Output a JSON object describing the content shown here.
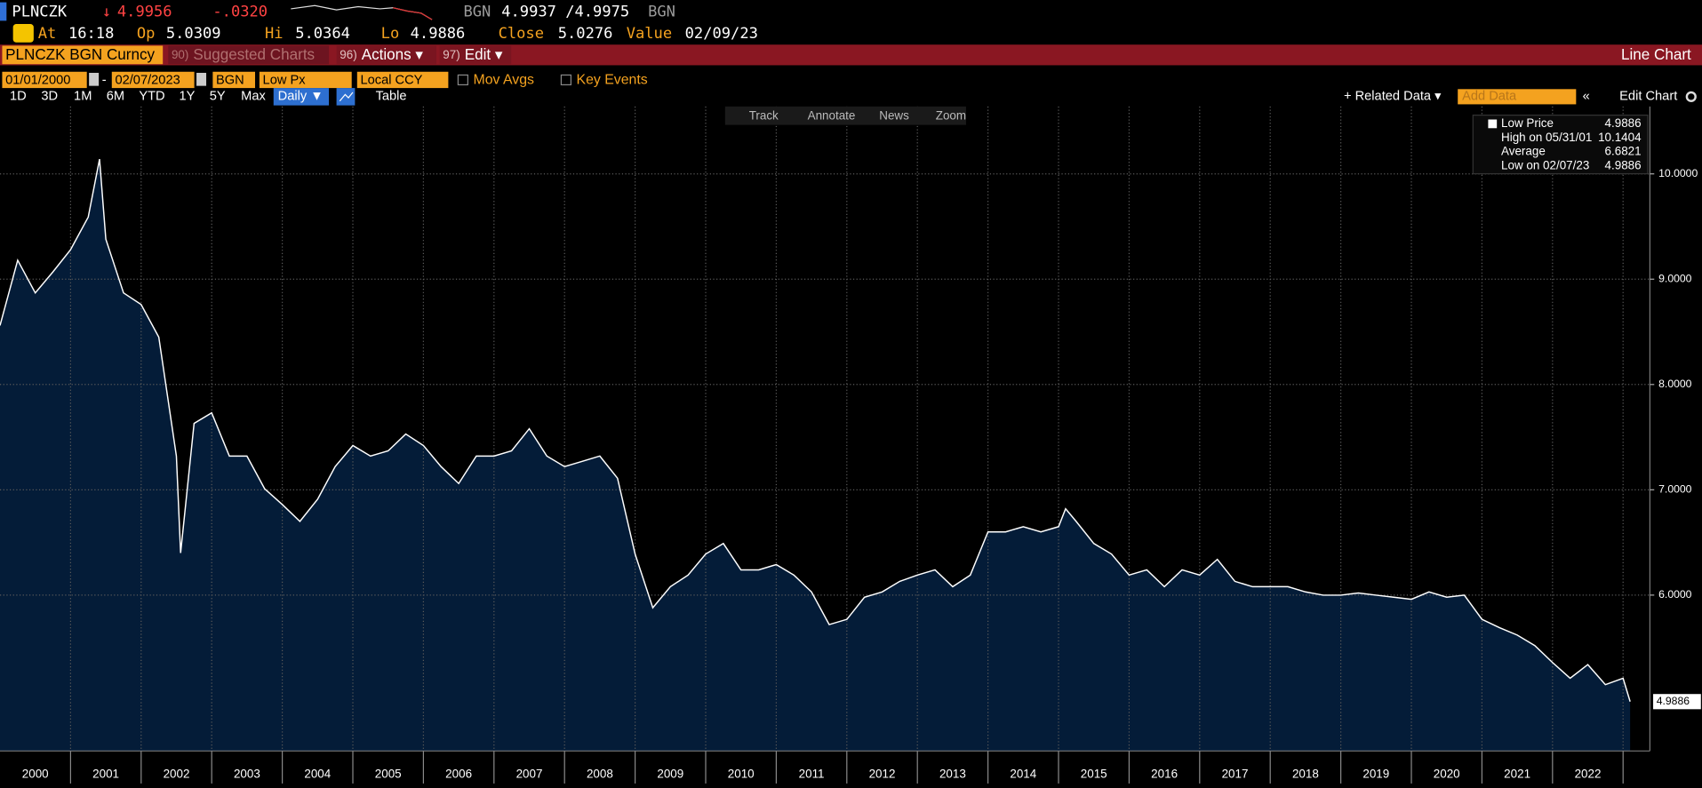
{
  "header": {
    "ticker": "PLNCZK",
    "arrow": "↓",
    "price": "4.9956",
    "change": "-.0320",
    "bid_ccy": "BGN",
    "bid_ask": "4.9937 /4.9975",
    "ask_ccy": "BGN",
    "stats": [
      [
        "At",
        "16:18"
      ],
      [
        "Op",
        "5.0309"
      ],
      [
        "Hi",
        "5.0364"
      ],
      [
        "Lo",
        "4.9886"
      ],
      [
        "Close",
        "5.0276"
      ],
      [
        "Value",
        "02/09/23"
      ]
    ]
  },
  "menu": {
    "security": "PLNCZK BGN Curncy",
    "items": [
      [
        "90)",
        "Suggested Charts"
      ],
      [
        "96)",
        "Actions ▾"
      ],
      [
        "97)",
        "Edit ▾"
      ]
    ],
    "view": "Line Chart"
  },
  "controls": {
    "start": "01/01/2000",
    "end": "02/07/2023",
    "currency": "BGN",
    "field": "Low Px",
    "ccy_mode": "Local CCY",
    "mov_avgs": "Mov Avgs",
    "key_events": "Key Events"
  },
  "toolbar": {
    "periods": [
      "1D",
      "3D",
      "1M",
      "6M",
      "YTD",
      "1Y",
      "5Y",
      "Max"
    ],
    "frequency": "Daily ▼",
    "table": "Table",
    "related": "+ Related Data ▾",
    "add_data": "Add Data",
    "edit_chart": "Edit Chart"
  },
  "chart_tools": [
    "Track",
    "Annotate",
    "News",
    "Zoom"
  ],
  "legend": [
    [
      "Low Price",
      "4.9886"
    ],
    [
      "High on 05/31/01",
      "10.1404"
    ],
    [
      "Average",
      "6.6821"
    ],
    [
      "Low on 02/07/23",
      "4.9886"
    ]
  ],
  "chart_data": {
    "type": "area",
    "color": "#ffffff",
    "fill": "#041c38",
    "grid": true,
    "x": [
      2000,
      2000.25,
      2000.5,
      2000.75,
      2001,
      2001.25,
      2001.41,
      2001.5,
      2001.75,
      2002,
      2002.25,
      2002.5,
      2002.56,
      2002.75,
      2003,
      2003.25,
      2003.5,
      2003.75,
      2004,
      2004.25,
      2004.5,
      2004.75,
      2005,
      2005.25,
      2005.5,
      2005.75,
      2006,
      2006.25,
      2006.5,
      2006.75,
      2007,
      2007.25,
      2007.5,
      2007.75,
      2008,
      2008.25,
      2008.5,
      2008.75,
      2009,
      2009.25,
      2009.5,
      2009.75,
      2010,
      2010.25,
      2010.5,
      2010.75,
      2011,
      2011.25,
      2011.5,
      2011.75,
      2012,
      2012.25,
      2012.5,
      2012.75,
      2013,
      2013.25,
      2013.5,
      2013.75,
      2014,
      2014.25,
      2014.5,
      2014.75,
      2015,
      2015.1,
      2015.25,
      2015.5,
      2015.75,
      2016,
      2016.25,
      2016.5,
      2016.75,
      2017,
      2017.25,
      2017.5,
      2017.75,
      2018,
      2018.25,
      2018.5,
      2018.75,
      2019,
      2019.25,
      2019.5,
      2019.75,
      2020,
      2020.25,
      2020.5,
      2020.75,
      2021,
      2021.25,
      2021.5,
      2021.75,
      2022,
      2022.25,
      2022.5,
      2022.75,
      2023,
      2023.1
    ],
    "values": [
      8.56,
      9.18,
      8.87,
      9.07,
      9.28,
      9.59,
      10.1404,
      9.38,
      8.87,
      8.76,
      8.45,
      7.32,
      6.4,
      7.63,
      7.73,
      7.32,
      7.32,
      7.01,
      6.86,
      6.7,
      6.91,
      7.22,
      7.42,
      7.32,
      7.37,
      7.53,
      7.42,
      7.22,
      7.06,
      7.32,
      7.32,
      7.37,
      7.58,
      7.32,
      7.22,
      7.27,
      7.32,
      7.11,
      6.39,
      5.88,
      6.08,
      6.19,
      6.39,
      6.49,
      6.24,
      6.24,
      6.29,
      6.19,
      6.03,
      5.72,
      5.77,
      5.98,
      6.03,
      6.13,
      6.19,
      6.24,
      6.08,
      6.19,
      6.6,
      6.6,
      6.65,
      6.6,
      6.65,
      6.82,
      6.7,
      6.49,
      6.39,
      6.19,
      6.24,
      6.08,
      6.24,
      6.19,
      6.34,
      6.13,
      6.08,
      6.08,
      6.08,
      6.03,
      6,
      6,
      6.02,
      6,
      5.98,
      5.96,
      6.03,
      5.98,
      6,
      5.77,
      5.69,
      5.62,
      5.52,
      5.36,
      5.21,
      5.34,
      5.15,
      5.21,
      4.9886
    ],
    "xlim": [
      2000,
      2023.38
    ],
    "xticks": [
      2001,
      2002,
      2003,
      2004,
      2005,
      2006,
      2007,
      2008,
      2009,
      2010,
      2011,
      2012,
      2013,
      2014,
      2015,
      2016,
      2017,
      2018,
      2019,
      2020,
      2021,
      2022,
      2023
    ],
    "year_labels": [
      "2000",
      "2001",
      "2002",
      "2003",
      "2004",
      "2005",
      "2006",
      "2007",
      "2008",
      "2009",
      "2010",
      "2011",
      "2012",
      "2013",
      "2014",
      "2015",
      "2016",
      "2017",
      "2018",
      "2019",
      "2020",
      "2021",
      "2022"
    ],
    "ylim": [
      4.52,
      10.64
    ],
    "yticks": [
      {
        "value": 6,
        "label": "6.0000"
      },
      {
        "value": 7,
        "label": "7.0000"
      },
      {
        "value": 8,
        "label": "8.0000"
      },
      {
        "value": 9,
        "label": "9.0000"
      },
      {
        "value": 10,
        "label": "10.0000"
      }
    ]
  }
}
